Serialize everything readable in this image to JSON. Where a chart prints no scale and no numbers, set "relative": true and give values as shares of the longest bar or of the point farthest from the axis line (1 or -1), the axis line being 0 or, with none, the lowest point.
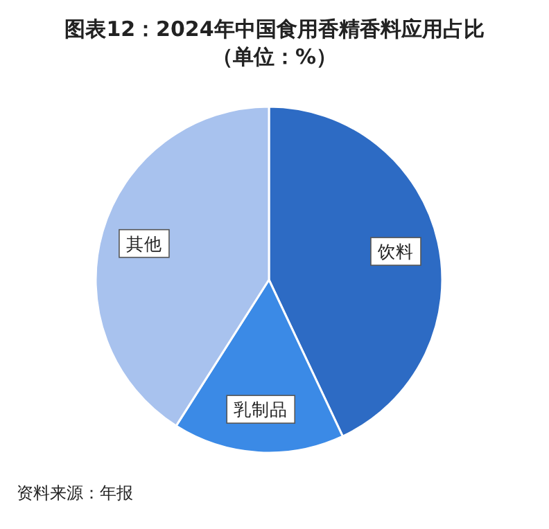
{
  "chart_data": {
    "type": "pie",
    "title": "图表12：2024年中国食用香精香料应用占比（单位：%）",
    "relative": true,
    "categories": [
      "饮料",
      "乳制品",
      "其他"
    ],
    "values": [
      43,
      16,
      41
    ],
    "colors": [
      "#2d6bc4",
      "#3b8ae6",
      "#a8c2ee"
    ],
    "annotations": [
      "资料来源：年报"
    ]
  }
}
